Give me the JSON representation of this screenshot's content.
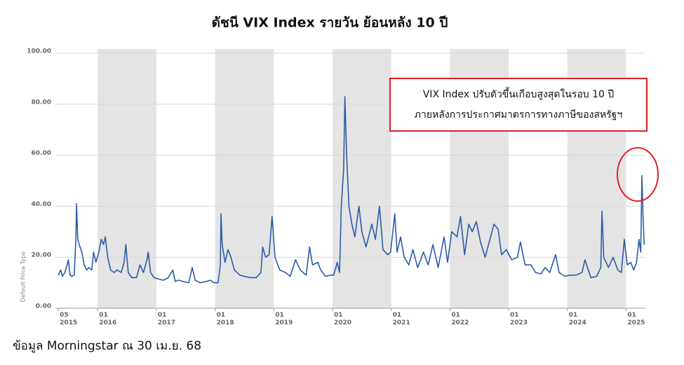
{
  "chart_data": {
    "type": "line",
    "title": "ดัชนี VIX Index รายวัน ย้อนหลัง 10 ปี",
    "y_label": "Default Price Type",
    "annotation": [
      "VIX Index ปรับตัวขึ้นเกือบสูงสุดในรอบ 10 ปี",
      "ภายหลังการประกาศมาตรการทางภาษีของสหรัฐฯ"
    ],
    "source": "ข้อมูล Morningstar ณ 30 เม.ย. 68",
    "xlim": [
      2015.28,
      2025.33
    ],
    "xticks": [
      {
        "value": 2015.33,
        "label": "05\n2015"
      },
      {
        "value": 2016,
        "label": "01\n2016"
      },
      {
        "value": 2017,
        "label": "01\n2017"
      },
      {
        "value": 2018,
        "label": "01\n2018"
      },
      {
        "value": 2019,
        "label": "01\n2019"
      },
      {
        "value": 2020,
        "label": "01\n2020"
      },
      {
        "value": 2021,
        "label": "01\n2021"
      },
      {
        "value": 2022,
        "label": "01\n2022"
      },
      {
        "value": 2023,
        "label": "01\n2023"
      },
      {
        "value": 2024,
        "label": "01\n2024"
      },
      {
        "value": 2025,
        "label": "01\n2025"
      }
    ],
    "ylim": [
      0,
      100
    ],
    "yticks": [
      {
        "value": 0,
        "label": "0.00"
      },
      {
        "value": 20,
        "label": "20.00"
      },
      {
        "value": 40,
        "label": "40.00"
      },
      {
        "value": 60,
        "label": "60.00"
      },
      {
        "value": 80,
        "label": "80.00"
      },
      {
        "value": 100,
        "label": "100.00"
      }
    ],
    "grid": true,
    "shade_alternate_years": true,
    "series": [
      {
        "name": "VIX Index",
        "color": "#2b5ca8",
        "x": [
          2015.33,
          2015.37,
          2015.4,
          2015.44,
          2015.48,
          2015.5,
          2015.53,
          2015.56,
          2015.6,
          2015.63,
          2015.64,
          2015.66,
          2015.7,
          2015.73,
          2015.77,
          2015.81,
          2015.85,
          2015.9,
          2015.93,
          2015.97,
          2016.02,
          2016.06,
          2016.1,
          2016.13,
          2016.17,
          2016.22,
          2016.28,
          2016.33,
          2016.4,
          2016.45,
          2016.48,
          2016.52,
          2016.58,
          2016.66,
          2016.72,
          2016.78,
          2016.84,
          2016.86,
          2016.9,
          2016.96,
          2017.03,
          2017.12,
          2017.2,
          2017.28,
          2017.32,
          2017.38,
          2017.46,
          2017.55,
          2017.61,
          2017.66,
          2017.75,
          2017.85,
          2017.92,
          2017.98,
          2018.05,
          2018.09,
          2018.1,
          2018.12,
          2018.17,
          2018.22,
          2018.27,
          2018.33,
          2018.42,
          2018.5,
          2018.6,
          2018.7,
          2018.78,
          2018.81,
          2018.86,
          2018.92,
          2018.97,
          2019.02,
          2019.1,
          2019.2,
          2019.28,
          2019.37,
          2019.45,
          2019.55,
          2019.61,
          2019.66,
          2019.75,
          2019.8,
          2019.88,
          2019.97,
          2020.02,
          2020.08,
          2020.12,
          2020.15,
          2020.19,
          2020.21,
          2020.24,
          2020.28,
          2020.33,
          2020.38,
          2020.45,
          2020.5,
          2020.57,
          2020.67,
          2020.73,
          2020.8,
          2020.86,
          2020.94,
          2020.99,
          2021.06,
          2021.1,
          2021.16,
          2021.22,
          2021.3,
          2021.37,
          2021.45,
          2021.55,
          2021.63,
          2021.71,
          2021.8,
          2021.9,
          2021.96,
          2022.03,
          2022.12,
          2022.18,
          2022.25,
          2022.32,
          2022.38,
          2022.45,
          2022.52,
          2022.6,
          2022.67,
          2022.75,
          2022.82,
          2022.88,
          2022.96,
          2023.05,
          2023.15,
          2023.2,
          2023.28,
          2023.38,
          2023.46,
          2023.55,
          2023.62,
          2023.7,
          2023.8,
          2023.86,
          2023.96,
          2024.04,
          2024.15,
          2024.25,
          2024.3,
          2024.4,
          2024.5,
          2024.57,
          2024.59,
          2024.62,
          2024.7,
          2024.78,
          2024.86,
          2024.92,
          2024.97,
          2025.02,
          2025.08,
          2025.13,
          2025.18,
          2025.22,
          2025.25,
          2025.27,
          2025.29,
          2025.31
        ],
        "values": [
          13,
          15,
          12.5,
          14,
          17,
          19,
          13,
          12.5,
          13,
          28,
          41,
          27,
          24,
          22,
          17,
          15,
          16,
          15,
          22,
          18,
          22,
          27,
          25,
          28,
          20,
          15,
          14,
          15,
          14,
          18,
          25,
          14,
          12,
          12,
          17,
          14,
          19,
          22,
          14,
          12,
          11.5,
          11,
          12,
          15,
          10.5,
          11,
          10.5,
          10,
          16,
          11,
          10,
          10.5,
          11,
          10,
          10,
          17,
          37,
          25,
          18,
          23,
          20,
          15,
          13,
          12.5,
          12,
          12,
          14,
          24,
          20,
          21,
          36,
          20,
          15,
          14,
          12.5,
          19,
          15,
          13,
          24,
          17,
          18,
          15,
          12.5,
          13,
          13,
          18,
          14,
          40,
          55,
          83,
          60,
          40,
          33,
          28,
          40,
          30,
          24,
          33,
          27,
          40,
          23,
          21,
          22,
          37,
          22,
          28,
          20,
          17,
          23,
          16,
          22,
          17,
          25,
          16,
          28,
          18,
          30,
          28,
          36,
          21,
          33,
          30,
          34,
          26,
          20,
          26,
          33,
          31,
          21,
          23,
          19,
          20,
          26,
          17,
          17,
          14,
          13.5,
          16,
          14,
          21,
          14,
          12.5,
          13,
          13,
          14,
          19,
          12,
          12.5,
          16,
          38,
          20,
          16,
          20,
          15,
          14,
          27,
          17,
          18,
          15,
          18,
          27,
          22,
          52,
          35,
          25
        ]
      }
    ]
  }
}
